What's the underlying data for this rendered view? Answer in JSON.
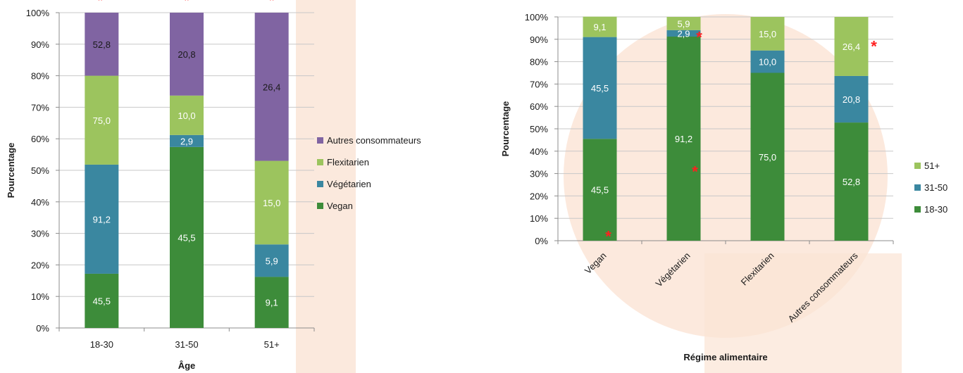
{
  "colors": {
    "vegan": "#3d8c3a",
    "vegetarien": "#3a87a0",
    "flexitarien": "#9cc45e",
    "autres": "#8064a2",
    "star": "#ff2020",
    "grid": "#c8c8c8",
    "axis": "#8c8c8c",
    "bg_tint": "#fbe9dd"
  },
  "chart_data": [
    {
      "type": "bar",
      "stacked": true,
      "xlabel": "Âge",
      "ylabel": "Pourcentage",
      "yticks": [
        "0%",
        "10%",
        "20%",
        "30%",
        "40%",
        "50%",
        "60%",
        "70%",
        "80%",
        "90%",
        "100%"
      ],
      "ylim": [
        0,
        100
      ],
      "categories": [
        "18-30",
        "31-50",
        "51+"
      ],
      "legend_position": "right",
      "series": [
        {
          "name": "Vegan",
          "color_key": "vegan",
          "values": [
            17.2,
            57.4,
            16.2
          ],
          "labels": [
            "45,5",
            "45,5",
            "9,1"
          ],
          "label_color": "#ffffff"
        },
        {
          "name": "Végétarien",
          "color_key": "vegetarien",
          "values": [
            34.6,
            3.8,
            10.3
          ],
          "labels": [
            "91,2",
            "2,9",
            "5,9"
          ],
          "label_color": "#ffffff"
        },
        {
          "name": "Flexitarien",
          "color_key": "flexitarien",
          "values": [
            28.2,
            12.5,
            26.5
          ],
          "labels": [
            "75,0",
            "10,0",
            "15,0"
          ],
          "label_color": "#ffffff"
        },
        {
          "name": "Autres consommateurs",
          "color_key": "autres",
          "values": [
            20.0,
            26.3,
            47.0
          ],
          "labels": [
            "52,8",
            "20,8",
            "26,4"
          ],
          "label_color": "#1a1a1a"
        }
      ],
      "legend_order": [
        "Autres consommateurs",
        "Flexitarien",
        "Végétarien",
        "Vegan"
      ],
      "stars": [
        "*",
        "*",
        "*"
      ]
    },
    {
      "type": "bar",
      "stacked": true,
      "xlabel": "Régime alimentaire",
      "ylabel": "Pourcentage",
      "yticks": [
        "0%",
        "10%",
        "20%",
        "30%",
        "40%",
        "50%",
        "60%",
        "70%",
        "80%",
        "90%",
        "100%"
      ],
      "ylim": [
        0,
        100
      ],
      "categories": [
        "Vegan",
        "Végétarien",
        "Flexitarien",
        "Autres consommateurs"
      ],
      "legend_position": "right",
      "series": [
        {
          "name": "18-30",
          "color_key": "vegan",
          "values": [
            45.5,
            91.2,
            75.0,
            52.8
          ],
          "labels": [
            "45,5",
            "91,2",
            "75,0",
            "52,8"
          ],
          "label_color": "#ffffff"
        },
        {
          "name": "31-50",
          "color_key": "vegetarien",
          "values": [
            45.5,
            2.9,
            10.0,
            20.8
          ],
          "labels": [
            "45,5",
            "2,9",
            "10,0",
            "20,8"
          ],
          "label_color": "#ffffff"
        },
        {
          "name": "51+",
          "color_key": "flexitarien",
          "values": [
            9.1,
            5.9,
            15.0,
            26.4
          ],
          "labels": [
            "9,1",
            "5,9",
            "15,0",
            "26,4"
          ],
          "label_color": "#ffffff"
        }
      ],
      "legend_order": [
        "51+",
        "31-50",
        "18-30"
      ],
      "stars": [
        "*",
        "*",
        "*",
        "*"
      ]
    }
  ]
}
